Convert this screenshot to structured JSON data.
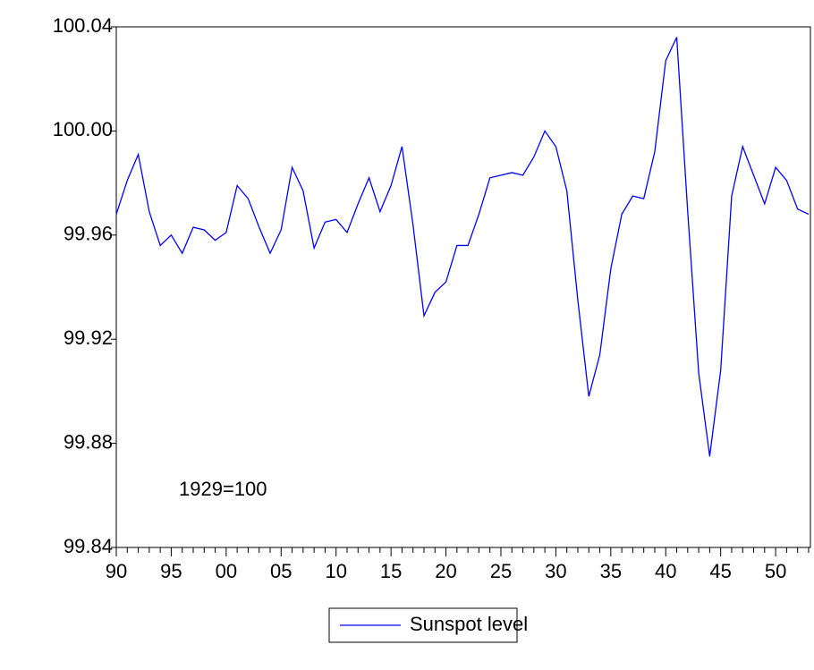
{
  "chart_data": {
    "type": "line",
    "categories": [
      "90",
      null,
      null,
      null,
      null,
      "95",
      null,
      null,
      null,
      null,
      "00",
      null,
      null,
      null,
      null,
      "05",
      null,
      null,
      null,
      null,
      "10",
      null,
      null,
      null,
      null,
      "15",
      null,
      null,
      null,
      null,
      "20",
      null,
      null,
      null,
      null,
      "25",
      null,
      null,
      null,
      null,
      "30",
      null,
      null,
      null,
      null,
      "35",
      null,
      null,
      null,
      null,
      "40",
      null,
      null,
      null,
      null,
      "45",
      null,
      null,
      null,
      null,
      "50",
      null,
      null,
      null
    ],
    "series": [
      {
        "name": "Sunspot level",
        "color": "#0000ff",
        "values": [
          99.968,
          99.981,
          99.991,
          99.969,
          99.956,
          99.96,
          99.953,
          99.963,
          99.962,
          99.958,
          99.961,
          99.979,
          99.974,
          99.963,
          99.953,
          99.962,
          99.986,
          99.977,
          99.955,
          99.965,
          99.966,
          99.961,
          99.972,
          99.982,
          99.969,
          99.979,
          99.994,
          99.964,
          99.929,
          99.938,
          99.942,
          99.956,
          99.956,
          99.968,
          99.982,
          99.983,
          99.984,
          99.983,
          99.99,
          100.0,
          99.994,
          99.977,
          99.935,
          99.898,
          99.914,
          99.947,
          99.968,
          99.975,
          99.974,
          99.992,
          100.027,
          100.036,
          99.969,
          99.907,
          99.875,
          99.908,
          99.975,
          99.994,
          99.983,
          99.972,
          99.986,
          99.981,
          99.97,
          99.968
        ]
      }
    ],
    "ylim": [
      99.84,
      100.04
    ],
    "yticks": [
      99.84,
      99.88,
      99.92,
      99.96,
      {
        "value": 100,
        "label": "100.00"
      },
      100.04
    ],
    "annotation": "1929=100",
    "legend": "bottom"
  }
}
